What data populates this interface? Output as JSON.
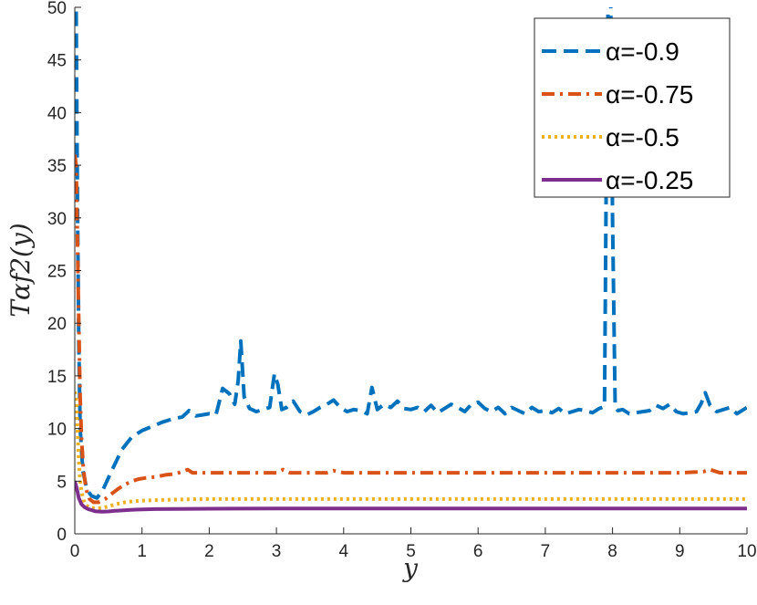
{
  "chart_data": {
    "type": "line",
    "xlabel": "y",
    "ylabel": "Tαf2(y)",
    "xlim": [
      0,
      10
    ],
    "ylim": [
      0,
      50
    ],
    "xticks": [
      "0",
      "1",
      "2",
      "3",
      "4",
      "5",
      "6",
      "7",
      "8",
      "9",
      "10"
    ],
    "yticks": [
      "0",
      "5",
      "10",
      "15",
      "20",
      "25",
      "30",
      "35",
      "40",
      "45",
      "50"
    ],
    "grid": false,
    "legend_position": "top-right",
    "series": [
      {
        "name": "α=-0.9",
        "color": "#0072BD",
        "style": "dashed",
        "x": [
          0.0,
          0.02,
          0.04,
          0.06,
          0.08,
          0.12,
          0.18,
          0.25,
          0.33,
          0.42,
          0.55,
          0.7,
          0.85,
          1.0,
          1.15,
          1.3,
          1.45,
          1.6,
          1.7,
          1.8,
          1.9,
          2.0,
          2.1,
          2.2,
          2.3,
          2.38,
          2.43,
          2.47,
          2.52,
          2.6,
          2.7,
          2.8,
          2.9,
          2.97,
          3.02,
          3.08,
          3.15,
          3.25,
          3.35,
          3.45,
          3.55,
          3.65,
          3.75,
          3.85,
          3.95,
          4.05,
          4.15,
          4.25,
          4.35,
          4.42,
          4.5,
          4.6,
          4.7,
          4.8,
          4.9,
          5.0,
          5.1,
          5.2,
          5.3,
          5.4,
          5.5,
          5.6,
          5.7,
          5.8,
          5.9,
          6.0,
          6.1,
          6.2,
          6.3,
          6.4,
          6.5,
          6.6,
          6.7,
          6.8,
          6.9,
          7.0,
          7.1,
          7.2,
          7.3,
          7.4,
          7.5,
          7.6,
          7.7,
          7.8,
          7.88,
          7.92,
          7.96,
          8.0,
          8.04,
          8.08,
          8.15,
          8.25,
          8.35,
          8.45,
          8.55,
          8.65,
          8.75,
          8.85,
          8.95,
          9.05,
          9.15,
          9.25,
          9.32,
          9.38,
          9.45,
          9.55,
          9.65,
          9.75,
          9.85,
          9.95,
          10.0
        ],
        "values": [
          60,
          50,
          32,
          18,
          10,
          6,
          4.2,
          3.6,
          3.4,
          4.2,
          6.0,
          8.0,
          9.2,
          9.8,
          10.2,
          10.6,
          10.9,
          11.1,
          11.7,
          11.2,
          11.3,
          11.4,
          11.3,
          13.8,
          13.3,
          12.3,
          14.5,
          18.3,
          13.0,
          11.9,
          11.6,
          11.8,
          12.0,
          15.2,
          14.2,
          11.8,
          12.0,
          12.6,
          11.6,
          11.3,
          11.6,
          12.0,
          12.3,
          12.7,
          12.0,
          11.6,
          11.8,
          11.7,
          11.4,
          13.9,
          11.8,
          12.3,
          12.0,
          12.6,
          11.9,
          11.8,
          12.0,
          11.6,
          12.2,
          11.5,
          11.9,
          12.3,
          12.0,
          11.6,
          12.3,
          12.5,
          11.9,
          11.6,
          12.0,
          11.4,
          12.0,
          11.7,
          11.4,
          12.0,
          11.6,
          11.7,
          11.5,
          11.9,
          11.4,
          11.6,
          11.8,
          11.7,
          11.5,
          11.9,
          12.1,
          45,
          60,
          30,
          12.0,
          11.7,
          11.8,
          11.4,
          11.5,
          11.6,
          11.7,
          12.2,
          11.9,
          12.3,
          11.6,
          11.4,
          11.5,
          11.6,
          12.4,
          13.4,
          12.2,
          11.6,
          11.8,
          12.0,
          11.4,
          11.8,
          12.0
        ]
      },
      {
        "name": "α=-0.75",
        "color": "#D95319",
        "style": "dashdot",
        "x": [
          0.0,
          0.02,
          0.04,
          0.06,
          0.08,
          0.1,
          0.13,
          0.17,
          0.22,
          0.28,
          0.35,
          0.45,
          0.55,
          0.65,
          0.75,
          0.85,
          0.95,
          1.05,
          1.2,
          1.35,
          1.5,
          1.6,
          1.68,
          1.75,
          2.0,
          2.5,
          3.0,
          3.1,
          3.2,
          3.5,
          3.75,
          3.85,
          4.0,
          4.5,
          5.0,
          5.5,
          6.0,
          6.5,
          7.0,
          7.5,
          8.0,
          8.5,
          9.0,
          9.35,
          9.45,
          9.6,
          10.0
        ],
        "values": [
          36,
          35,
          28,
          20,
          13,
          9,
          6,
          4.2,
          3.3,
          3.0,
          3.0,
          3.3,
          3.8,
          4.3,
          4.7,
          5.0,
          5.2,
          5.3,
          5.4,
          5.6,
          5.7,
          5.9,
          6.1,
          5.8,
          5.8,
          5.8,
          5.8,
          6.1,
          5.8,
          5.8,
          5.8,
          6.0,
          5.8,
          5.8,
          5.8,
          5.8,
          5.8,
          5.8,
          5.8,
          5.8,
          5.8,
          5.8,
          5.8,
          5.9,
          6.1,
          5.8,
          5.8
        ]
      },
      {
        "name": "α=-0.5",
        "color": "#EDB120",
        "style": "dotted",
        "x": [
          0.0,
          0.02,
          0.04,
          0.06,
          0.08,
          0.1,
          0.13,
          0.17,
          0.22,
          0.3,
          0.4,
          0.5,
          0.6,
          0.7,
          0.8,
          0.9,
          1.0,
          1.2,
          1.5,
          2.0,
          3.0,
          4.0,
          5.0,
          6.0,
          7.0,
          8.0,
          9.0,
          10.0
        ],
        "values": [
          13.5,
          13.0,
          10.0,
          7.0,
          5.0,
          4.0,
          3.2,
          2.7,
          2.5,
          2.4,
          2.45,
          2.6,
          2.8,
          2.95,
          3.05,
          3.1,
          3.15,
          3.2,
          3.25,
          3.3,
          3.3,
          3.3,
          3.3,
          3.3,
          3.3,
          3.3,
          3.3,
          3.3
        ]
      },
      {
        "name": "α=-0.25",
        "color": "#7E2F8E",
        "style": "solid",
        "x": [
          0.0,
          0.03,
          0.06,
          0.1,
          0.15,
          0.2,
          0.25,
          0.3,
          0.4,
          0.5,
          0.6,
          0.7,
          0.8,
          0.9,
          1.0,
          1.2,
          1.5,
          2.0,
          3.0,
          4.0,
          5.0,
          6.0,
          7.0,
          8.0,
          9.0,
          10.0
        ],
        "values": [
          5.0,
          4.3,
          3.4,
          2.8,
          2.5,
          2.35,
          2.25,
          2.15,
          2.1,
          2.12,
          2.18,
          2.22,
          2.26,
          2.3,
          2.32,
          2.35,
          2.37,
          2.38,
          2.4,
          2.4,
          2.4,
          2.4,
          2.4,
          2.4,
          2.4,
          2.4
        ]
      }
    ]
  }
}
